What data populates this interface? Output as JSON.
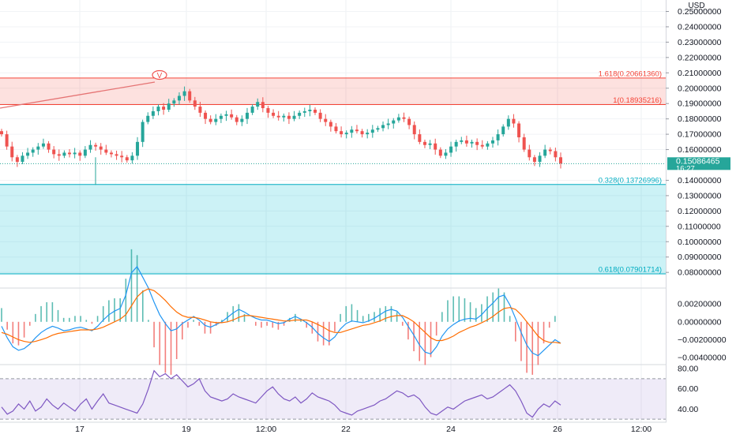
{
  "chart_data": [
    {
      "type": "candlestick",
      "currency": "USD",
      "x_ticks": [
        "17",
        "19",
        "12:00",
        "22",
        "24",
        "26",
        "12:00"
      ],
      "y_ticks": [
        "0.25000000",
        "0.24000000",
        "0.23000000",
        "0.22000000",
        "0.21000000",
        "0.20000000",
        "0.19000000",
        "0.18000000",
        "0.17000000",
        "0.16000000",
        "0.14000000",
        "0.13000000",
        "0.12000000",
        "0.11000000",
        "0.10000000",
        "0.09000000",
        "0.08000000"
      ],
      "ylim": [
        0.072,
        0.254
      ],
      "last_price": "0.15086465",
      "countdown": "16:27",
      "fib_levels": [
        {
          "label": "1.618(0.20661360)",
          "value": 0.2066136
        },
        {
          "label": "1(0.18935216)",
          "value": 0.18935216
        },
        {
          "label": "0.328(0.13726996)",
          "value": 0.13726996
        },
        {
          "label": "0.618(0.07901714)",
          "value": 0.07901714
        }
      ],
      "marker_label": "V",
      "close_series": [
        0.17,
        0.162,
        0.155,
        0.152,
        0.156,
        0.158,
        0.16,
        0.162,
        0.164,
        0.16,
        0.157,
        0.156,
        0.158,
        0.157,
        0.158,
        0.156,
        0.16,
        0.163,
        0.162,
        0.16,
        0.158,
        0.157,
        0.156,
        0.155,
        0.153,
        0.156,
        0.165,
        0.178,
        0.182,
        0.185,
        0.188,
        0.186,
        0.19,
        0.192,
        0.195,
        0.198,
        0.192,
        0.188,
        0.184,
        0.18,
        0.178,
        0.18,
        0.182,
        0.183,
        0.181,
        0.178,
        0.18,
        0.184,
        0.188,
        0.191,
        0.187,
        0.184,
        0.182,
        0.181,
        0.182,
        0.18,
        0.182,
        0.184,
        0.185,
        0.186,
        0.184,
        0.18,
        0.178,
        0.175,
        0.172,
        0.17,
        0.171,
        0.173,
        0.172,
        0.17,
        0.171,
        0.173,
        0.174,
        0.176,
        0.177,
        0.179,
        0.181,
        0.18,
        0.176,
        0.17,
        0.165,
        0.163,
        0.164,
        0.16,
        0.156,
        0.158,
        0.162,
        0.165,
        0.166,
        0.164,
        0.165,
        0.163,
        0.162,
        0.164,
        0.166,
        0.17,
        0.175,
        0.18,
        0.177,
        0.168,
        0.16,
        0.155,
        0.152,
        0.156,
        0.16,
        0.159,
        0.155,
        0.151
      ]
    },
    {
      "type": "macd",
      "y_ticks": [
        "0.00200000",
        "0.00000000",
        "-0.00200000",
        "-0.00400000"
      ],
      "ylim": [
        -0.0048,
        0.0037
      ],
      "macd": [
        -0.0005,
        -0.0018,
        -0.0028,
        -0.0032,
        -0.003,
        -0.0025,
        -0.0018,
        -0.0012,
        -0.0008,
        -0.0005,
        -0.0007,
        -0.001,
        -0.0009,
        -0.0007,
        -0.0006,
        -0.0008,
        -0.001,
        -0.0005,
        0.0002,
        0.0008,
        0.0012,
        0.0015,
        0.003,
        0.0055,
        0.0062,
        0.005,
        0.0038,
        0.0022,
        0.0008,
        -0.0002,
        -0.001,
        -0.0008,
        -0.0002,
        0.0002,
        0.0006,
        0.0002,
        -0.0004,
        -0.0006,
        -0.0003,
        0.0,
        0.0005,
        0.001,
        0.0014,
        0.0011,
        0.0007,
        0.0004,
        0.0002,
        0.0002,
        0.0,
        -0.0002,
        -0.0001,
        0.0003,
        0.0006,
        0.0003,
        -0.0001,
        -0.0006,
        -0.0013,
        -0.0018,
        -0.0022,
        -0.0017,
        -0.0008,
        -0.0002,
        0.0001,
        0.0,
        -0.0001,
        0.0001,
        0.0004,
        0.0008,
        0.0012,
        0.0014,
        0.0012,
        0.0005,
        -0.0005,
        -0.0015,
        -0.0026,
        -0.0034,
        -0.0036,
        -0.0028,
        -0.0016,
        -0.0008,
        -0.0003,
        0.0001,
        0.0003,
        0.0004,
        0.0003,
        0.0008,
        0.0015,
        0.0021,
        0.0028,
        0.003,
        0.0019,
        0.0004,
        -0.0012,
        -0.0026,
        -0.0035,
        -0.0038,
        -0.0032,
        -0.0026,
        -0.002,
        -0.0024
      ],
      "signal": [
        -0.0012,
        -0.0014,
        -0.0017,
        -0.002,
        -0.0022,
        -0.0023,
        -0.0022,
        -0.002,
        -0.0018,
        -0.0015,
        -0.0013,
        -0.0012,
        -0.0011,
        -0.001,
        -0.0009,
        -0.0009,
        -0.0009,
        -0.0008,
        -0.0006,
        -0.0003,
        0.0,
        0.0003,
        0.0008,
        0.0018,
        0.0028,
        0.0034,
        0.0037,
        0.0035,
        0.003,
        0.0024,
        0.0017,
        0.0011,
        0.0007,
        0.0005,
        0.0005,
        0.0004,
        0.0002,
        0.0,
        -0.0001,
        -0.0001,
        0.0,
        0.0002,
        0.0005,
        0.0007,
        0.0007,
        0.0006,
        0.0005,
        0.0004,
        0.0003,
        0.0002,
        0.0001,
        0.0001,
        0.0002,
        0.0002,
        0.0002,
        0.0,
        -0.0003,
        -0.0006,
        -0.001,
        -0.0012,
        -0.0012,
        -0.001,
        -0.0008,
        -0.0006,
        -0.0004,
        -0.0003,
        -0.0001,
        0.0001,
        0.0004,
        0.0006,
        0.0007,
        0.0007,
        0.0004,
        0.0,
        -0.0006,
        -0.0012,
        -0.0018,
        -0.0021,
        -0.0021,
        -0.0019,
        -0.0016,
        -0.0012,
        -0.0009,
        -0.0006,
        -0.0004,
        -0.0001,
        0.0002,
        0.0006,
        0.0011,
        0.0015,
        0.0016,
        0.0014,
        0.0008,
        0.0,
        -0.0008,
        -0.0016,
        -0.0021,
        -0.0023,
        -0.0023,
        -0.0024
      ]
    },
    {
      "type": "rsi",
      "y_ticks": [
        "80.00",
        "60.00",
        "40.00"
      ],
      "ylim": [
        27,
        84
      ],
      "band": [
        70,
        30
      ],
      "values": [
        42,
        35,
        38,
        45,
        40,
        48,
        38,
        42,
        50,
        44,
        40,
        46,
        42,
        38,
        45,
        50,
        40,
        48,
        55,
        46,
        44,
        42,
        40,
        38,
        36,
        45,
        60,
        78,
        72,
        75,
        70,
        74,
        68,
        62,
        65,
        70,
        58,
        52,
        50,
        48,
        50,
        55,
        52,
        50,
        48,
        46,
        52,
        58,
        62,
        55,
        50,
        48,
        52,
        46,
        50,
        56,
        52,
        50,
        48,
        44,
        38,
        36,
        34,
        38,
        40,
        42,
        44,
        48,
        50,
        54,
        58,
        56,
        52,
        54,
        50,
        42,
        36,
        34,
        38,
        42,
        40,
        44,
        48,
        50,
        52,
        54,
        50,
        52,
        56,
        60,
        64,
        58,
        48,
        36,
        32,
        40,
        45,
        42,
        48,
        44
      ]
    }
  ]
}
